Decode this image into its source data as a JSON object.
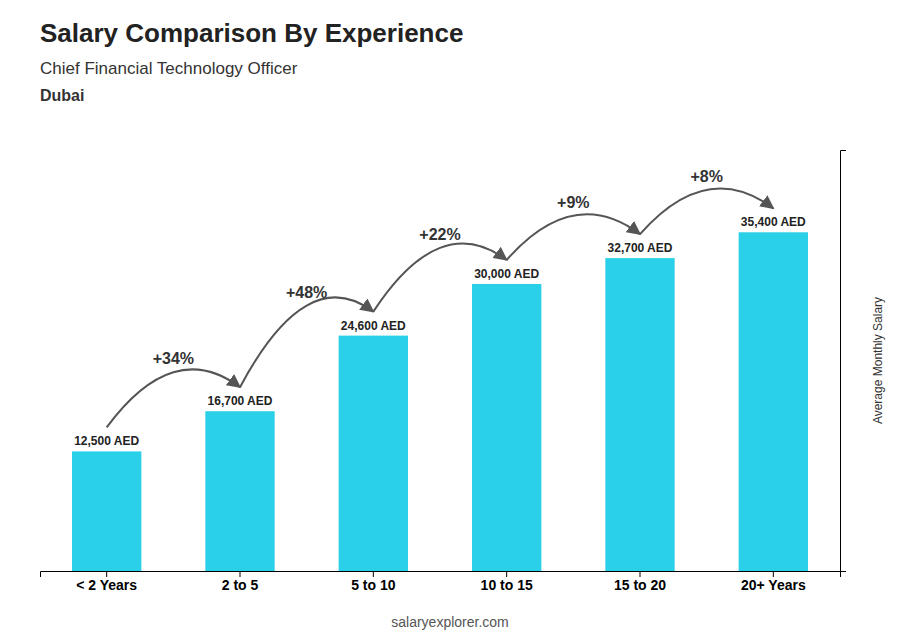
{
  "chart_data": {
    "type": "bar",
    "title": "Salary Comparison By Experience",
    "subtitle": "Chief Financial Technology Officer",
    "city": "Dubai",
    "ylabel": "Average Monthly Salary",
    "source": "salaryexplorer.com",
    "categories": [
      "< 2 Years",
      "2 to 5",
      "5 to 10",
      "10 to 15",
      "15 to 20",
      "20+ Years"
    ],
    "values": [
      12500,
      16700,
      24600,
      30000,
      32700,
      35400
    ],
    "value_labels": [
      "12,500 AED",
      "16,700 AED",
      "24,600 AED",
      "30,000 AED",
      "32,700 AED",
      "35,400 AED"
    ],
    "color": "#29d0e8",
    "ylim": [
      0,
      44000
    ],
    "data_labels": true,
    "tick_labels": "x",
    "annotations": [
      {
        "text": "+34%",
        "from": "< 2 Years",
        "to": "2 to 5"
      },
      {
        "text": "+48%",
        "from": "2 to 5",
        "to": "5 to 10"
      },
      {
        "text": "+22%",
        "from": "5 to 10",
        "to": "10 to 15"
      },
      {
        "text": "+9%",
        "from": "10 to 15",
        "to": "15 to 20"
      },
      {
        "text": "+8%",
        "from": "15 to 20",
        "to": "20+ Years"
      }
    ]
  }
}
